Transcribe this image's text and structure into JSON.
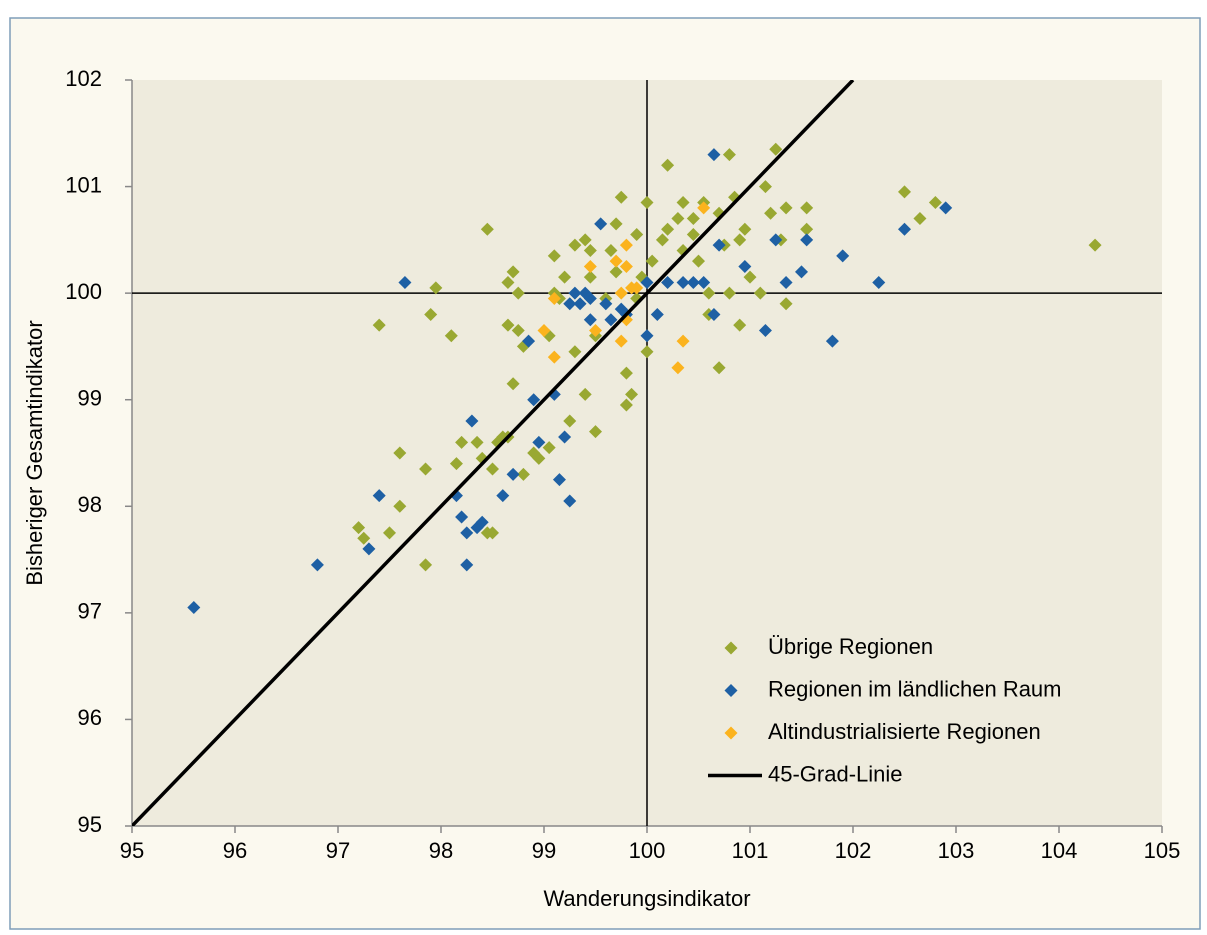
{
  "chart_data": {
    "type": "scatter",
    "xlabel": "Wanderungsindikator",
    "ylabel": "Bisheriger Gesamtindikator",
    "xlim": [
      95,
      105
    ],
    "xticks": [
      95,
      96,
      97,
      98,
      99,
      100,
      101,
      102,
      103,
      104,
      105
    ],
    "ylim": [
      95,
      102
    ],
    "yticks": [
      95,
      96,
      97,
      98,
      99,
      100,
      101,
      102
    ],
    "vlines": [
      100
    ],
    "hlines": [
      100
    ],
    "legend": "lower right",
    "series": [
      {
        "name": "Übrige Regionen",
        "color": "#99a832",
        "marker": "diamond",
        "x": [
          97.2,
          97.25,
          97.5,
          97.6,
          97.6,
          97.4,
          97.85,
          97.85,
          97.9,
          97.95,
          98.1,
          98.45,
          98.15,
          98.2,
          98.35,
          98.4,
          98.5,
          98.5,
          98.45,
          98.55,
          98.6,
          98.65,
          98.7,
          98.65,
          98.75,
          98.7,
          98.65,
          98.75,
          98.8,
          98.8,
          98.9,
          98.95,
          99.05,
          99.1,
          99.1,
          99.15,
          99.2,
          99.05,
          99.25,
          99.3,
          99.3,
          99.4,
          99.45,
          99.45,
          99.5,
          99.5,
          99.4,
          99.6,
          99.65,
          99.7,
          99.7,
          99.75,
          99.8,
          99.85,
          99.8,
          99.9,
          99.9,
          99.95,
          100,
          100,
          100.05,
          100.15,
          100.2,
          100.2,
          100.3,
          100.35,
          100.35,
          100.45,
          100.45,
          100.5,
          100.55,
          100.6,
          100.7,
          100.7,
          100.75,
          100.8,
          100.85,
          100.9,
          100.95,
          101,
          100.9,
          101.15,
          101.2,
          101.25,
          101.3,
          101.35,
          101.35,
          101.55,
          101.55,
          102.5,
          102.65,
          102.8,
          104.35,
          101.1,
          100.8,
          100.6
        ],
        "values": [
          97.8,
          97.7,
          97.75,
          98.0,
          98.5,
          99.7,
          98.35,
          97.45,
          99.8,
          100.05,
          99.6,
          100.6,
          98.4,
          98.6,
          98.6,
          98.45,
          98.35,
          97.75,
          97.75,
          98.6,
          98.65,
          98.65,
          99.15,
          99.7,
          99.65,
          100.2,
          100.1,
          100,
          99.5,
          98.3,
          98.5,
          98.45,
          98.55,
          100,
          100.35,
          99.95,
          100.15,
          99.6,
          98.8,
          99.45,
          100.45,
          100.5,
          100.4,
          100.15,
          99.6,
          98.7,
          99.05,
          99.95,
          100.4,
          100.65,
          100.2,
          100.9,
          99.25,
          99.05,
          98.95,
          99.95,
          100.55,
          100.15,
          100.85,
          99.45,
          100.3,
          100.5,
          101.2,
          100.6,
          100.7,
          100.85,
          100.4,
          100.7,
          100.55,
          100.3,
          100.85,
          99.8,
          99.3,
          100.75,
          100.45,
          101.3,
          100.9,
          100.5,
          100.6,
          100.15,
          99.7,
          101,
          100.75,
          101.35,
          100.5,
          100.8,
          99.9,
          100.8,
          100.6,
          100.95,
          100.7,
          100.85,
          100.45,
          100,
          100,
          100
        ]
      },
      {
        "name": "Regionen im ländlichen Raum",
        "color": "#1e60a4",
        "marker": "diamond",
        "x": [
          95.6,
          96.8,
          97.3,
          97.4,
          97.65,
          98.15,
          98.2,
          98.25,
          98.25,
          98.3,
          98.35,
          98.4,
          98.6,
          98.7,
          98.9,
          98.95,
          98.85,
          99.1,
          99.15,
          99.2,
          99.25,
          99.25,
          99.3,
          99.35,
          99.4,
          99.45,
          99.45,
          99.55,
          99.6,
          99.65,
          99.75,
          99.8,
          100,
          100,
          100.1,
          100.2,
          100.35,
          100.45,
          100.55,
          100.65,
          100.65,
          100.7,
          100.95,
          101.15,
          101.25,
          101.35,
          101.5,
          101.55,
          101.8,
          101.9,
          102.25,
          102.5,
          102.9
        ],
        "values": [
          97.05,
          97.45,
          97.6,
          98.1,
          100.1,
          98.1,
          97.9,
          97.75,
          97.45,
          98.8,
          97.8,
          97.85,
          98.1,
          98.3,
          99,
          98.6,
          99.55,
          99.05,
          98.25,
          98.65,
          98.05,
          99.9,
          100,
          99.9,
          100,
          99.75,
          99.95,
          100.65,
          99.9,
          99.75,
          99.85,
          99.8,
          99.6,
          100.1,
          99.8,
          100.1,
          100.1,
          100.1,
          100.1,
          101.3,
          99.8,
          100.45,
          100.25,
          99.65,
          100.5,
          100.1,
          100.2,
          100.5,
          99.55,
          100.35,
          100.1,
          100.6,
          100.8
        ]
      },
      {
        "name": "Altindustrialisierte Regionen",
        "color": "#fbb31e",
        "marker": "diamond",
        "x": [
          99,
          99.1,
          99.1,
          99.45,
          99.5,
          99.7,
          99.75,
          99.8,
          99.8,
          99.8,
          99.85,
          99.9,
          100.35,
          100.3,
          100.55,
          99.75
        ],
        "values": [
          99.65,
          99.4,
          99.95,
          100.25,
          99.65,
          100.3,
          99.55,
          99.75,
          100.45,
          100.25,
          100.05,
          100.05,
          99.55,
          99.3,
          100.8,
          100
        ]
      },
      {
        "name": "45-Grad-Linie",
        "color": "#000000",
        "type": "line",
        "x": [
          95,
          102
        ],
        "values": [
          95,
          102
        ]
      }
    ]
  }
}
